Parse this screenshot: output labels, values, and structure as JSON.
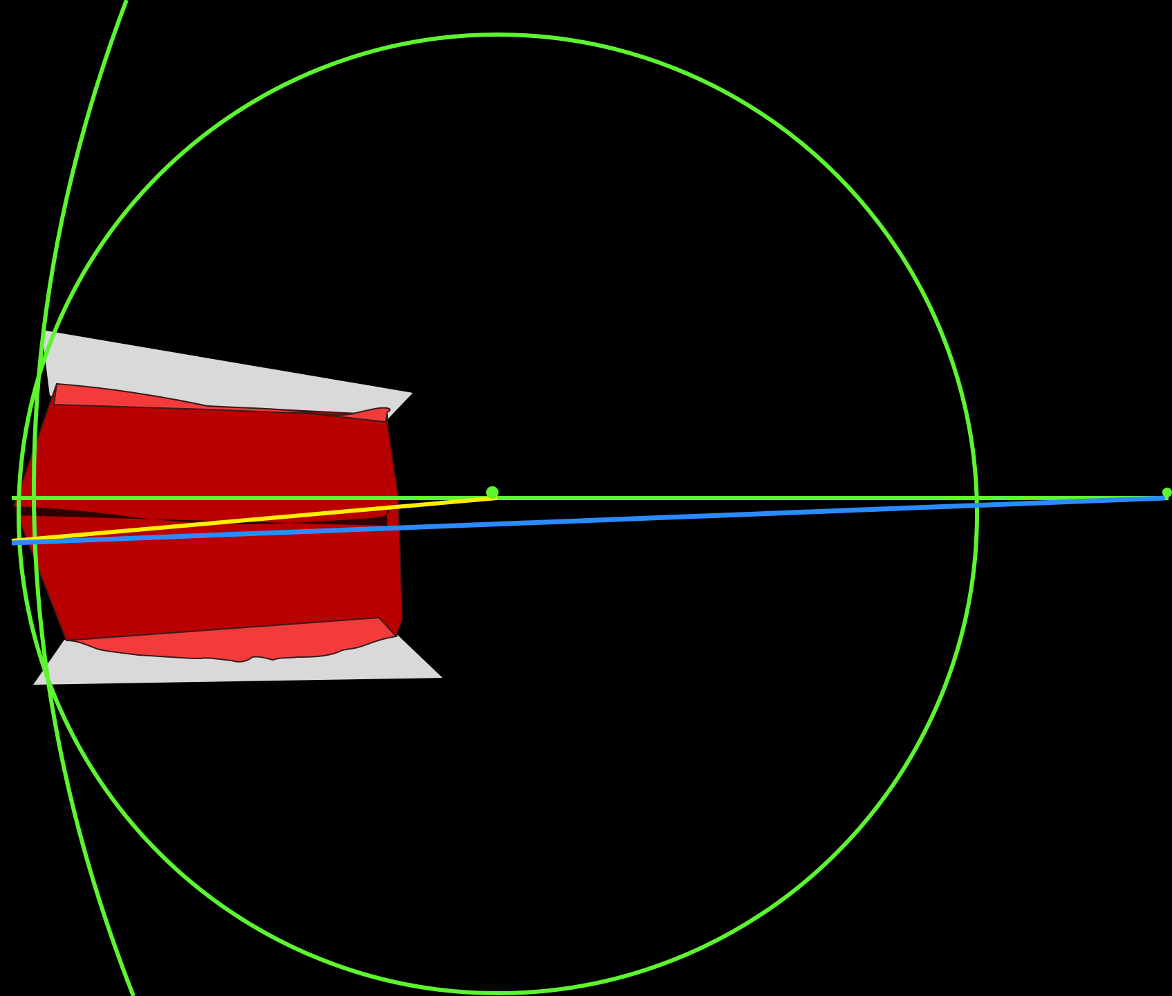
{
  "diagram": {
    "background_color": "#000000",
    "colors": {
      "circle_stroke": "#5cf52f",
      "axis_line": "#5cf52f",
      "yellow_ray": "#ffee00",
      "blue_ray": "#2a8cff",
      "occluder_plate": "#d9d9d9",
      "body_dark_red": "#b80000",
      "body_light_red": "#f43b3b",
      "body_outline": "#3a1a1a"
    },
    "elements": [
      "large-arc",
      "inner-circle",
      "optical-axis",
      "yellow-ray",
      "blue-ray",
      "center-point",
      "far-point",
      "upper-gray-plate",
      "lower-gray-plate",
      "red-body"
    ]
  }
}
